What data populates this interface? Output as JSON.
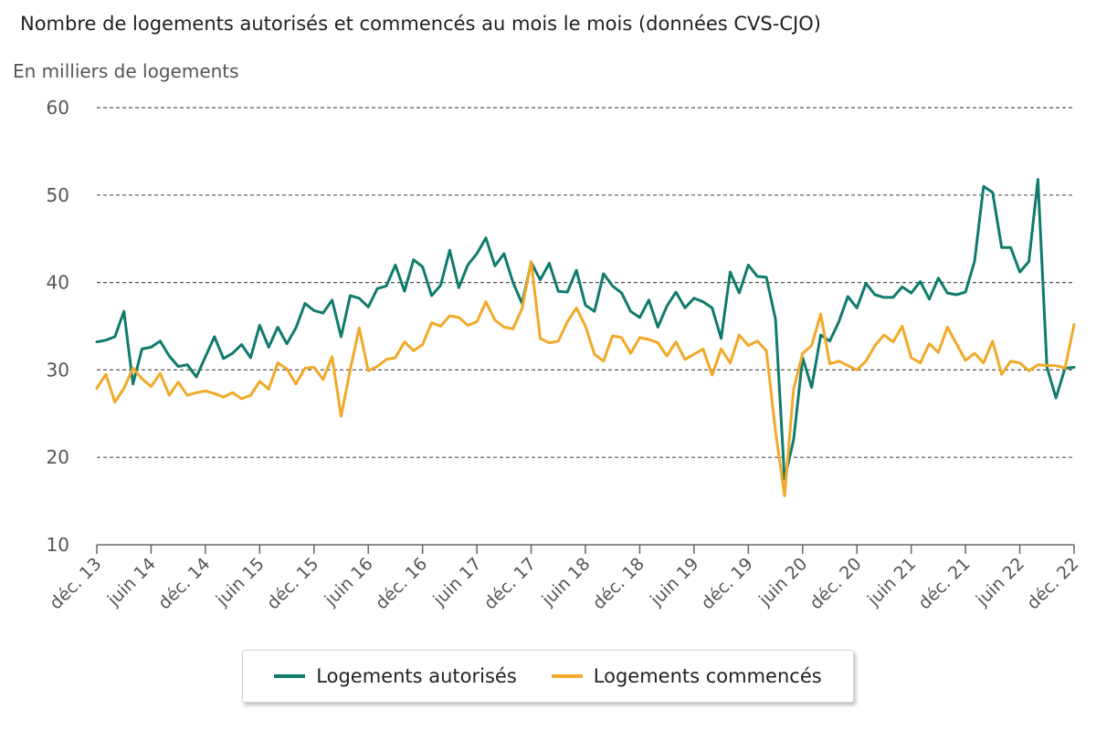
{
  "chart_data": {
    "type": "line",
    "title": "Nombre de logements autorisés et commencés au mois le mois (données CVS-CJO)",
    "ylabel": "En milliers de logements",
    "ylim": [
      10,
      60
    ],
    "yticks": [
      10,
      20,
      30,
      40,
      50,
      60
    ],
    "grid": true,
    "legend_position": "bottom",
    "x_start": "déc. 13",
    "x_end": "déc. 22",
    "xticks": [
      {
        "index": 0,
        "label": "déc. 13"
      },
      {
        "index": 6,
        "label": "juin 14"
      },
      {
        "index": 12,
        "label": "déc. 14"
      },
      {
        "index": 18,
        "label": "juin 15"
      },
      {
        "index": 24,
        "label": "déc. 15"
      },
      {
        "index": 30,
        "label": "juin 16"
      },
      {
        "index": 36,
        "label": "déc. 16"
      },
      {
        "index": 42,
        "label": "juin 17"
      },
      {
        "index": 48,
        "label": "déc. 17"
      },
      {
        "index": 54,
        "label": "juin 18"
      },
      {
        "index": 60,
        "label": "déc. 18"
      },
      {
        "index": 66,
        "label": "juin 19"
      },
      {
        "index": 72,
        "label": "déc. 19"
      },
      {
        "index": 78,
        "label": "juin 20"
      },
      {
        "index": 84,
        "label": "déc. 20"
      },
      {
        "index": 90,
        "label": "juin 21"
      },
      {
        "index": 96,
        "label": "déc. 21"
      },
      {
        "index": 102,
        "label": "juin 22"
      },
      {
        "index": 108,
        "label": "déc. 22"
      }
    ],
    "series": [
      {
        "name": "Logements autorisés",
        "color": "#0f7b6c",
        "values": [
          33.2,
          33.4,
          33.8,
          36.7,
          28.4,
          32.4,
          32.6,
          33.3,
          31.6,
          30.4,
          30.6,
          29.2,
          31.5,
          33.8,
          31.3,
          31.9,
          32.9,
          31.4,
          35.1,
          32.6,
          34.9,
          33.0,
          34.8,
          37.6,
          36.8,
          36.5,
          38.0,
          33.8,
          38.5,
          38.2,
          37.2,
          39.3,
          39.6,
          42.0,
          39.0,
          42.6,
          41.8,
          38.5,
          39.7,
          43.7,
          39.4,
          42.0,
          43.3,
          45.1,
          41.9,
          43.3,
          40.0,
          37.6,
          42.3,
          40.3,
          42.2,
          39.0,
          38.9,
          41.4,
          37.4,
          36.7,
          41.0,
          39.6,
          38.8,
          36.7,
          36.0,
          38.0,
          34.9,
          37.3,
          38.9,
          37.1,
          38.2,
          37.8,
          37.1,
          33.6,
          41.2,
          38.8,
          42.0,
          40.7,
          40.6,
          35.8,
          17.5,
          22.0,
          31.4,
          28.0,
          34.0,
          33.3,
          35.5,
          38.4,
          37.1,
          39.9,
          38.6,
          38.3,
          38.3,
          39.5,
          38.8,
          40.1,
          38.1,
          40.5,
          38.8,
          38.6,
          38.9,
          42.4,
          51.0,
          50.3,
          44.0,
          44.0,
          41.2,
          42.4,
          51.8,
          30.3,
          26.8,
          30.2,
          30.3
        ]
      },
      {
        "name": "Logements commencés",
        "color": "#f2a928",
        "values": [
          27.9,
          29.5,
          26.3,
          27.9,
          30.2,
          29.0,
          28.1,
          29.6,
          27.1,
          28.6,
          27.1,
          27.4,
          27.6,
          27.3,
          26.9,
          27.4,
          26.7,
          27.1,
          28.7,
          27.8,
          30.8,
          30.1,
          28.4,
          30.2,
          30.3,
          28.9,
          31.5,
          24.7,
          30.0,
          34.8,
          29.9,
          30.4,
          31.2,
          31.4,
          33.2,
          32.2,
          32.9,
          35.4,
          35.0,
          36.2,
          36.0,
          35.1,
          35.5,
          37.8,
          35.7,
          34.9,
          34.7,
          37.0,
          42.4,
          33.6,
          33.1,
          33.3,
          35.5,
          37.1,
          35.0,
          31.8,
          31.0,
          33.9,
          33.7,
          31.9,
          33.7,
          33.5,
          33.1,
          31.6,
          33.2,
          31.2,
          31.8,
          32.4,
          29.4,
          32.4,
          30.8,
          34.0,
          32.8,
          33.3,
          32.2,
          23.0,
          15.6,
          27.8,
          31.9,
          32.8,
          36.4,
          30.7,
          31.0,
          30.5,
          30.0,
          31.0,
          32.8,
          34.0,
          33.2,
          35.0,
          31.4,
          30.8,
          33.0,
          32.0,
          34.9,
          33.0,
          31.1,
          31.9,
          30.8,
          33.3,
          29.5,
          31.0,
          30.8,
          29.9,
          30.6,
          30.5,
          30.5,
          30.2,
          35.2
        ]
      }
    ]
  }
}
